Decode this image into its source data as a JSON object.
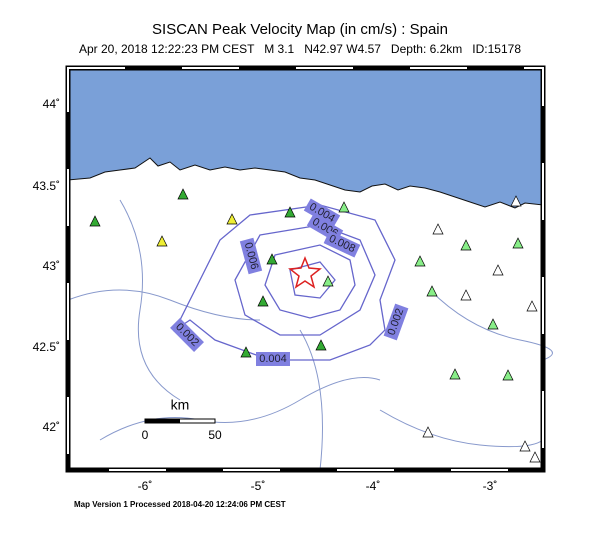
{
  "header": {
    "title": "SISCAN Peak Velocity Map (in cm/s) : Spain",
    "subtitle": "Apr 20, 2018 12:22:23 PM CEST   M 3.1   N42.97 W4.57   Depth: 6.2km   ID:15178"
  },
  "axes": {
    "lat_labels": [
      "44˚",
      "43.5˚",
      "43˚",
      "42.5˚",
      "42˚"
    ],
    "lon_labels": [
      "-6˚",
      "-5˚",
      "-4˚",
      "-3˚"
    ]
  },
  "contours": {
    "labels": [
      "0.004",
      "0.006",
      "0.008",
      "0.006",
      "0.002",
      "0.002",
      "0.004"
    ]
  },
  "scale_bar": {
    "unit": "km",
    "start": "0",
    "end": "50"
  },
  "footer": "Map Version 1 Processed 2018-04-20 12:24:06 PM CEST"
}
